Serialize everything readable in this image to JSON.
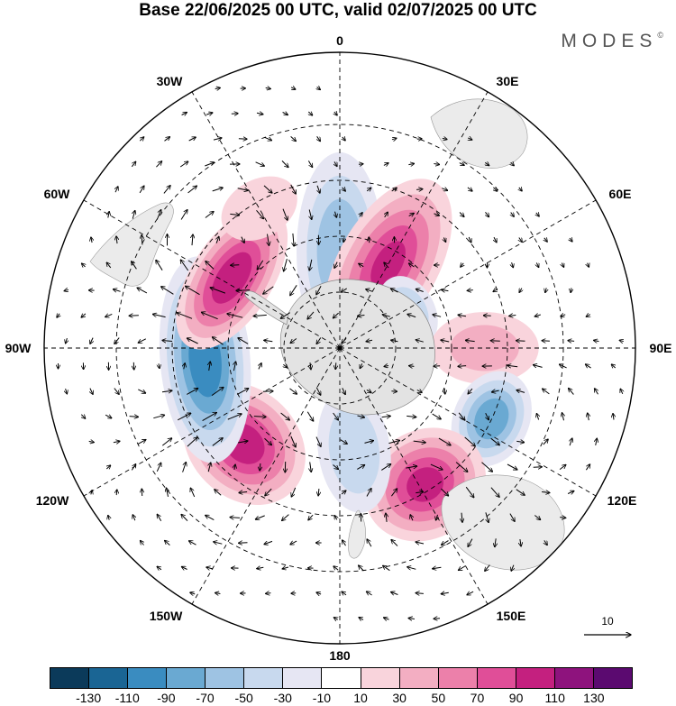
{
  "title": "Base 22/06/2025 00 UTC, valid 02/07/2025 00 UTC",
  "brand": {
    "name": "MODES",
    "mark": "©"
  },
  "longitude_labels": {
    "n0": "0",
    "e30": "30E",
    "e60": "60E",
    "e90": "90E",
    "e120": "120E",
    "e150": "150E",
    "s180": "180",
    "w150": "150W",
    "w120": "120W",
    "w90": "90W",
    "w60": "60W",
    "w30": "30W"
  },
  "reference_vector": {
    "label": "10"
  },
  "colorbar": {
    "colors": [
      "#0b3a5a",
      "#1a6594",
      "#3a8cc0",
      "#6aa9d2",
      "#9ec3e3",
      "#c8d9ee",
      "#e6e6f3",
      "#ffffff",
      "#f9d4dc",
      "#f3aec2",
      "#ec80aa",
      "#e04e98",
      "#c4207f",
      "#8e137d",
      "#5b0a70"
    ],
    "labels": [
      "-130",
      "-110",
      "-90",
      "-70",
      "-50",
      "-30",
      "-10",
      "10",
      "30",
      "50",
      "70",
      "90",
      "110",
      "130"
    ]
  },
  "anomaly_centers": [
    {
      "lon": 0,
      "lat": -60,
      "value": -75,
      "rx": 48,
      "ry": 110
    },
    {
      "lon": 30,
      "lat": -60,
      "value": 100,
      "rx": 55,
      "ry": 105
    },
    {
      "lon": 62,
      "lat": -66,
      "value": -55,
      "rx": 42,
      "ry": 30
    },
    {
      "lon": 90,
      "lat": -45,
      "value": 45,
      "rx": 40,
      "ry": 60
    },
    {
      "lon": 115,
      "lat": -38,
      "value": -95,
      "rx": 55,
      "ry": 42
    },
    {
      "lon": 148,
      "lat": -40,
      "value": 105,
      "rx": 70,
      "ry": 60
    },
    {
      "lon": 172,
      "lat": -58,
      "value": -55,
      "rx": 40,
      "ry": 70
    },
    {
      "lon": 225,
      "lat": -48,
      "value": 110,
      "rx": 75,
      "ry": 60
    },
    {
      "lon": 265,
      "lat": -48,
      "value": -115,
      "rx": 115,
      "ry": 50
    },
    {
      "lon": 303,
      "lat": -50,
      "value": 115,
      "rx": 90,
      "ry": 45
    },
    {
      "lon": 330,
      "lat": -40,
      "value": 35,
      "rx": 45,
      "ry": 32
    }
  ]
}
